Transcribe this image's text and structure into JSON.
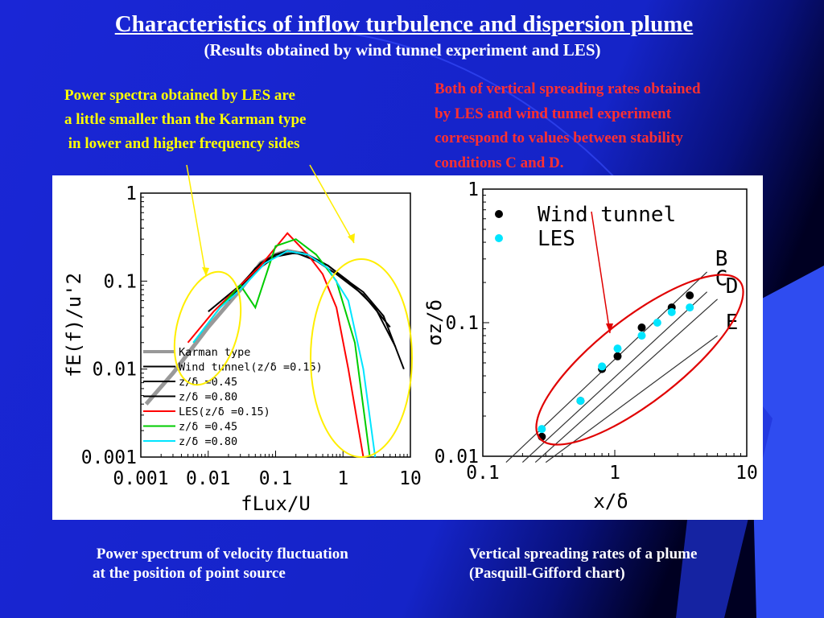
{
  "slide": {
    "title": "Characteristics of inflow turbulence and dispersion plume",
    "subtitle": "(Results obtained by wind tunnel experiment and LES)",
    "note_left": [
      "Power spectra obtained by LES are",
      "a little smaller than the Karman type",
      " in lower and higher frequency sides"
    ],
    "note_right": [
      "Both of vertical spreading rates obtained",
      "by LES and wind tunnel experiment",
      "correspond to values between stability",
      "conditions C and D."
    ],
    "caption_left": [
      " Power spectrum of velocity fluctuation",
      "at the position of point source"
    ],
    "caption_right": [
      "Vertical spreading rates of a plume",
      "(Pasquill-Gifford chart)"
    ],
    "colors": {
      "title": "#ffffff",
      "note_left": "#ffff00",
      "note_right": "#ff3030",
      "background_main": "#1a2bd8",
      "background_dark": "#000033"
    }
  },
  "chart_data": [
    {
      "type": "line",
      "xlabel": "fLux/U",
      "ylabel": "fE(f)/u'2",
      "xscale": "log",
      "yscale": "log",
      "xlim": [
        0.001,
        10
      ],
      "ylim": [
        0.001,
        1
      ],
      "x_ticks": [
        "0.001",
        "0.01",
        "0.1",
        "1",
        "10"
      ],
      "y_ticks": [
        "0.001",
        "0.01",
        "0.1",
        "1"
      ],
      "legend_placement": "lower-left",
      "series": [
        {
          "name": "Karman type",
          "color": "#999999",
          "x": [
            0.0012,
            0.003,
            0.01,
            0.03,
            0.06,
            0.1,
            0.15,
            0.3
          ],
          "y": [
            0.004,
            0.009,
            0.03,
            0.08,
            0.16,
            0.2,
            0.22,
            0.2
          ]
        },
        {
          "name": "Wind tunnel(z/δ =0.15)",
          "color": "#000000",
          "x": [
            0.01,
            0.03,
            0.06,
            0.1,
            0.15,
            0.3,
            0.6,
            1,
            2,
            4,
            8
          ],
          "y": [
            0.045,
            0.09,
            0.16,
            0.2,
            0.22,
            0.2,
            0.15,
            0.11,
            0.075,
            0.04,
            0.01
          ]
        },
        {
          "name": "z/δ =0.45",
          "color": "#000000",
          "x": [
            0.015,
            0.05,
            0.1,
            0.2,
            0.4,
            0.8,
            2,
            5
          ],
          "y": [
            0.05,
            0.13,
            0.19,
            0.21,
            0.17,
            0.12,
            0.07,
            0.03
          ]
        },
        {
          "name": "z/δ =0.80",
          "color": "#000000",
          "x": [
            0.02,
            0.05,
            0.1,
            0.25,
            0.6,
            1.2,
            3,
            6
          ],
          "y": [
            0.06,
            0.14,
            0.2,
            0.21,
            0.15,
            0.1,
            0.05,
            0.018
          ]
        },
        {
          "name": "LES(z/δ =0.15)",
          "color": "#ff0000",
          "x": [
            0.005,
            0.012,
            0.03,
            0.06,
            0.15,
            0.3,
            0.5,
            0.8,
            1.2,
            2
          ],
          "y": [
            0.02,
            0.045,
            0.09,
            0.15,
            0.35,
            0.2,
            0.12,
            0.05,
            0.01,
            0.001
          ]
        },
        {
          "name": "z/δ =0.45",
          "color": "#00cc00",
          "x": [
            0.006,
            0.015,
            0.03,
            0.05,
            0.1,
            0.2,
            0.4,
            0.8,
            1.5,
            2.5
          ],
          "y": [
            0.02,
            0.05,
            0.09,
            0.05,
            0.25,
            0.3,
            0.2,
            0.1,
            0.02,
            0.001
          ]
        },
        {
          "name": "z/δ =0.80",
          "color": "#00e5ff",
          "x": [
            0.006,
            0.015,
            0.03,
            0.07,
            0.15,
            0.3,
            0.6,
            1.2,
            2,
            3
          ],
          "y": [
            0.02,
            0.05,
            0.08,
            0.16,
            0.22,
            0.2,
            0.14,
            0.06,
            0.01,
            0.001
          ]
        }
      ]
    },
    {
      "type": "scatter",
      "xlabel": "x/δ",
      "ylabel": "σz/δ",
      "xscale": "log",
      "yscale": "log",
      "xlim": [
        0.1,
        10
      ],
      "ylim": [
        0.01,
        1
      ],
      "x_ticks": [
        "0.1",
        "1",
        "10"
      ],
      "y_ticks": [
        "0.01",
        "0.1",
        "1"
      ],
      "legend_placement": "top-left",
      "series": [
        {
          "name": "Wind tunnel",
          "color": "#000000",
          "x": [
            0.28,
            0.55,
            0.8,
            1.05,
            1.6,
            2.7,
            3.7
          ],
          "y": [
            0.014,
            0.026,
            0.045,
            0.056,
            0.092,
            0.13,
            0.16
          ]
        },
        {
          "name": "LES",
          "color": "#00e5ff",
          "x": [
            0.28,
            0.55,
            0.8,
            1.05,
            1.6,
            2.1,
            2.7,
            3.7
          ],
          "y": [
            0.016,
            0.026,
            0.047,
            0.064,
            0.08,
            0.1,
            0.12,
            0.13
          ]
        }
      ],
      "stability_lines": [
        {
          "label": "B",
          "x": [
            0.15,
            5
          ],
          "y": [
            0.009,
            0.24
          ]
        },
        {
          "label": "C",
          "x": [
            0.2,
            5
          ],
          "y": [
            0.009,
            0.17
          ]
        },
        {
          "label": "D",
          "x": [
            0.25,
            6
          ],
          "y": [
            0.009,
            0.15
          ]
        },
        {
          "label": "E",
          "x": [
            0.3,
            6
          ],
          "y": [
            0.009,
            0.08
          ]
        }
      ]
    }
  ]
}
